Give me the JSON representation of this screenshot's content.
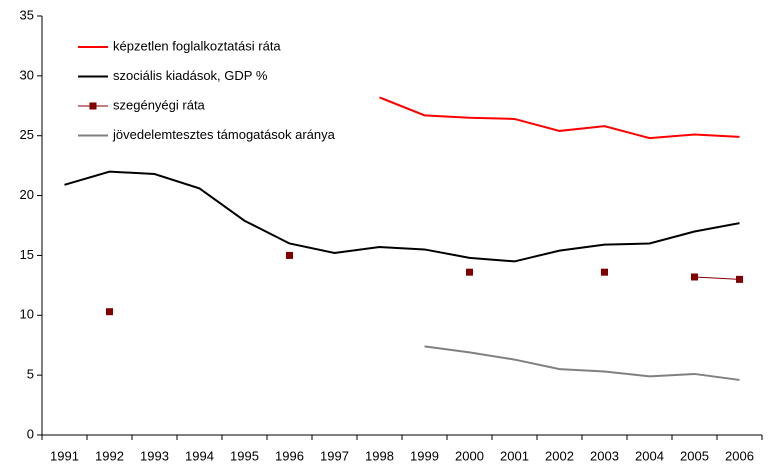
{
  "chart_data": {
    "type": "line",
    "categories": [
      "1991",
      "1992",
      "1993",
      "1994",
      "1995",
      "1996",
      "1997",
      "1998",
      "1999",
      "2000",
      "2001",
      "2002",
      "2003",
      "2004",
      "2005",
      "2006"
    ],
    "series": [
      {
        "name": "képzetlen foglalkoztatási ráta",
        "color": "#ff0000",
        "marker": false,
        "values": [
          null,
          null,
          null,
          null,
          null,
          null,
          null,
          28.2,
          26.7,
          26.5,
          26.4,
          25.4,
          25.8,
          24.8,
          25.1,
          24.9
        ]
      },
      {
        "name": "szociális kiadások, GDP %",
        "color": "#000000",
        "marker": false,
        "values": [
          20.9,
          22.0,
          21.8,
          20.6,
          17.9,
          16.0,
          15.2,
          15.7,
          15.5,
          14.8,
          14.5,
          15.4,
          15.9,
          16.0,
          17.0,
          17.7
        ]
      },
      {
        "name": "szegényégi ráta",
        "color": "#800000",
        "marker": true,
        "values": [
          null,
          10.3,
          null,
          null,
          null,
          15.0,
          null,
          null,
          null,
          13.6,
          null,
          null,
          13.6,
          null,
          13.2,
          13.0
        ]
      },
      {
        "name": "jövedelemtesztes támogatások aránya",
        "color": "#808080",
        "marker": false,
        "values": [
          null,
          null,
          null,
          null,
          null,
          null,
          null,
          null,
          7.4,
          6.9,
          6.3,
          5.5,
          5.3,
          4.9,
          5.1,
          4.6
        ]
      }
    ],
    "ylim": [
      0,
      35
    ],
    "yticks": [
      0,
      5,
      10,
      15,
      20,
      25,
      30,
      35
    ],
    "grid": false,
    "legend": "upper left"
  }
}
